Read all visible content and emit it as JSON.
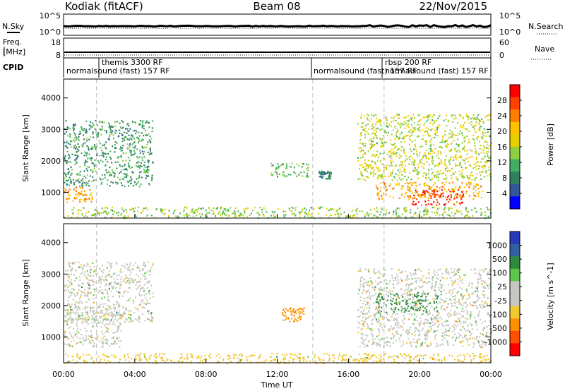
{
  "header": {
    "title": "Kodiak (fitACF)",
    "beam": "Beam 08",
    "date": "22/Nov/2015"
  },
  "noise_panel": {
    "left_label": "N.Sky",
    "right_label": "N.Search",
    "left_ticks": [
      "10^5",
      "10^0"
    ],
    "right_ticks": [
      "10^5",
      "10^0"
    ]
  },
  "freq_panel": {
    "left_label_line1": "Freq.",
    "left_label_line2": "[MHz]",
    "left_ticks": [
      "18",
      "8"
    ],
    "right_label": "Nave",
    "right_ticks": [
      "60",
      "0"
    ]
  },
  "cpid_panel": {
    "label": "CPID",
    "segments": [
      {
        "start_hour": 0,
        "end_hour": 14,
        "text": "normalsound (fast) 157 RF"
      },
      {
        "start_hour": 1.85,
        "end_hour": 18,
        "text": "themis 3300 RF"
      },
      {
        "start_hour": 14,
        "end_hour": 18,
        "text": "normalsound (fast) 157 RF"
      },
      {
        "start_hour": 18,
        "end_hour": 24,
        "text": "rbsp 200 RF"
      },
      {
        "start_hour": 18,
        "end_hour": 24,
        "text": "normalsound (fast) 157 RF"
      }
    ]
  },
  "power_colorbar": {
    "label": "Power [dB]",
    "ticks": [
      "28",
      "24",
      "20",
      "16",
      "12",
      "8",
      "4"
    ],
    "colors": [
      "#ff0000",
      "#ff4000",
      "#ff8000",
      "#ffc000",
      "#e8d000",
      "#90d040",
      "#40b060",
      "#308060",
      "#305898",
      "#0000ff"
    ]
  },
  "velocity_colorbar": {
    "label": "Velocity [m s^-1]",
    "ticks": [
      "1000",
      "500",
      "100",
      "25",
      "-25",
      "-100",
      "-500",
      "-1000"
    ],
    "colors": [
      "#2838b8",
      "#3060a0",
      "#2f8a3e",
      "#5ec64a",
      "#c6c6c2",
      "#c6c6c2",
      "#f0c830",
      "#ff9000",
      "#ff5000",
      "#ff0000"
    ]
  },
  "chart_data": {
    "type": "heatmap",
    "xlabel": "Time UT",
    "ylabel": "Slant Range [km]",
    "x_ticks": [
      "00:00",
      "04:00",
      "08:00",
      "12:00",
      "16:00",
      "20:00",
      "00:00"
    ],
    "xlim_hours": [
      0,
      24
    ],
    "y_ticks": [
      1000,
      2000,
      3000,
      4000
    ],
    "ylim_km": [
      180,
      4600
    ],
    "mode_boundaries_hours": [
      1.85,
      14.0,
      18.0
    ],
    "power_scatter_regions": [
      {
        "t0": 0.0,
        "t1": 1.6,
        "r0": 700,
        "r1": 1200,
        "level_db": 22
      },
      {
        "t0": 0.0,
        "t1": 5.0,
        "r0": 1200,
        "r1": 3300,
        "level_db": 10
      },
      {
        "t0": 11.6,
        "t1": 13.8,
        "r0": 1500,
        "r1": 1950,
        "level_db": 12
      },
      {
        "t0": 14.3,
        "t1": 15.0,
        "r0": 1450,
        "r1": 1700,
        "level_db": 8
      },
      {
        "t0": 0.0,
        "t1": 24.0,
        "r0": 200,
        "r1": 550,
        "level_db": 14
      },
      {
        "t0": 16.5,
        "t1": 24.0,
        "r0": 1400,
        "r1": 3500,
        "level_db": 16
      },
      {
        "t0": 17.5,
        "t1": 23.5,
        "r0": 800,
        "r1": 1350,
        "level_db": 22
      },
      {
        "t0": 19.5,
        "t1": 22.5,
        "r0": 600,
        "r1": 1100,
        "level_db": 29
      }
    ],
    "velocity_scatter_regions": [
      {
        "t0": 0.0,
        "t1": 3.2,
        "r0": 700,
        "r1": 2000,
        "velocity_ms": 0
      },
      {
        "t0": 0.0,
        "t1": 5.0,
        "r0": 1500,
        "r1": 3400,
        "velocity_ms": 0
      },
      {
        "t0": 12.2,
        "t1": 13.5,
        "r0": 1500,
        "r1": 1950,
        "velocity_ms": -300
      },
      {
        "t0": 0.0,
        "t1": 24.0,
        "r0": 180,
        "r1": 500,
        "velocity_ms": -60
      },
      {
        "t0": 16.5,
        "t1": 24.0,
        "r0": 700,
        "r1": 3200,
        "velocity_ms": 0
      },
      {
        "t0": 17.5,
        "t1": 21.0,
        "r0": 1800,
        "r1": 2400,
        "velocity_ms": 150
      }
    ]
  }
}
